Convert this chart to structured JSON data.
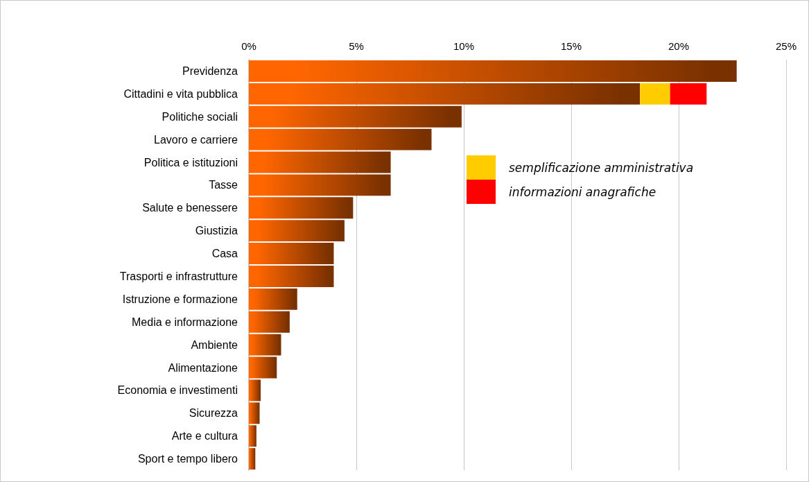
{
  "chart_data": {
    "type": "bar",
    "orientation": "horizontal",
    "stacked": true,
    "categories": [
      "Previdenza",
      "Cittadini e vita pubblica",
      "Politiche sociali",
      "Lavoro e carriere",
      "Politica e istituzioni",
      "Tasse",
      "Salute e benessere",
      "Giustizia",
      "Casa",
      "Trasporti e infrastrutture",
      "Istruzione e formazione",
      "Media e informazione",
      "Ambiente",
      "Alimentazione",
      "Economia e investimenti",
      "Sicurezza",
      "Arte e cultura",
      "Sport e tempo libero"
    ],
    "series": [
      {
        "color": "#ff6600",
        "values": [
          22.7,
          18.2,
          9.9,
          8.5,
          6.6,
          6.6,
          4.85,
          4.45,
          3.95,
          3.95,
          2.25,
          1.9,
          1.5,
          1.3,
          0.55,
          0.5,
          0.35,
          0.3
        ]
      },
      {
        "name": "semplificazione amministrativa",
        "color": "#ffcc00",
        "values": [
          null,
          1.4,
          null,
          null,
          null,
          null,
          null,
          null,
          null,
          null,
          null,
          null,
          null,
          null,
          null,
          null,
          null,
          null
        ]
      },
      {
        "name": "informazioni anagrafiche",
        "color": "#ff0000",
        "values": [
          null,
          1.7,
          null,
          null,
          null,
          null,
          null,
          null,
          null,
          null,
          null,
          null,
          null,
          null,
          null,
          null,
          null,
          null
        ]
      }
    ],
    "xlim": [
      0,
      25
    ],
    "xticks": [
      {
        "value": 0,
        "label": "0%"
      },
      {
        "value": 5,
        "label": "5%"
      },
      {
        "value": 10,
        "label": "10%"
      },
      {
        "value": 15,
        "label": "15%"
      },
      {
        "value": 20,
        "label": "20%"
      },
      {
        "value": 25,
        "label": "25%"
      }
    ],
    "grid": "x",
    "legend": "right"
  }
}
